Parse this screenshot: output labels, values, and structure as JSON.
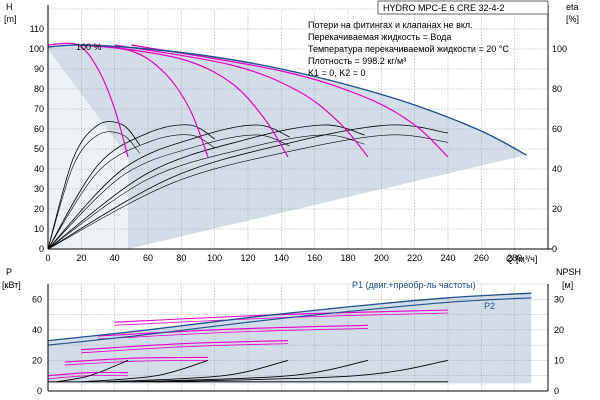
{
  "chart_data": [
    {
      "panel": "head",
      "type": "line",
      "title": "HYDRO MPC-E 6 CRE 32-4-2",
      "ylabel": "H",
      "ylabel_unit": "[m]",
      "y2label": "eta",
      "y2label_unit": "[%]",
      "xlabel": "Q",
      "xlabel_unit": "[м³/ч]",
      "xlim": [
        0,
        300
      ],
      "ylim": [
        0,
        120
      ],
      "y2lim": [
        0,
        120
      ],
      "grid": true,
      "x_ticks": [
        "0",
        "20",
        "40",
        "60",
        "80",
        "100",
        "120",
        "140",
        "160",
        "180",
        "200",
        "220",
        "240",
        "260",
        "280"
      ],
      "y_ticks": [
        "0",
        "10",
        "20",
        "30",
        "40",
        "50",
        "60",
        "70",
        "80",
        "90",
        "100",
        "110"
      ],
      "y2_ticks": [
        "0",
        "20",
        "40",
        "60",
        "80",
        "100"
      ],
      "annotation_100": "100 %",
      "info_lines": [
        "Потери на фитингах и клапанах не вкл.",
        "Перекачиваемая жидкость = Вода",
        "Температура перекачиваемой жидкости = 20 °C",
        "Плотность = 998.2 кг/м³",
        "K1 = 0, K2 = 0"
      ],
      "max_curve": {
        "x": [
          0,
          20,
          60,
          100,
          140,
          180,
          220,
          260,
          287
        ],
        "y": [
          101,
          102,
          100,
          96,
          90,
          82,
          72,
          59,
          47
        ]
      },
      "setpoint_curves": [
        {
          "x": [
            0,
            18,
            30,
            40,
            48
          ],
          "y": [
            102,
            102,
            90,
            70,
            46
          ]
        },
        {
          "x": [
            18,
            50,
            70,
            85,
            96
          ],
          "y": [
            102,
            99,
            88,
            70,
            46
          ]
        },
        {
          "x": [
            30,
            80,
            110,
            130,
            144
          ],
          "y": [
            102,
            95,
            83,
            65,
            46
          ]
        },
        {
          "x": [
            40,
            110,
            150,
            175,
            192
          ],
          "y": [
            102,
            92,
            79,
            63,
            46
          ]
        },
        {
          "x": [
            50,
            140,
            190,
            220,
            240
          ],
          "y": [
            102,
            89,
            76,
            62,
            46
          ]
        }
      ],
      "eta_curves": [
        {
          "x": [
            0,
            15,
            30,
            45,
            55
          ],
          "y": [
            0,
            45,
            62,
            62,
            52
          ]
        },
        {
          "x": [
            0,
            30,
            60,
            85,
            100
          ],
          "y": [
            0,
            42,
            58,
            62,
            55
          ]
        },
        {
          "x": [
            0,
            45,
            90,
            125,
            145
          ],
          "y": [
            0,
            40,
            56,
            62,
            56
          ]
        },
        {
          "x": [
            0,
            60,
            120,
            165,
            190
          ],
          "y": [
            0,
            38,
            55,
            62,
            57
          ]
        },
        {
          "x": [
            0,
            75,
            150,
            205,
            240
          ],
          "y": [
            0,
            36,
            54,
            62,
            58
          ]
        }
      ]
    },
    {
      "panel": "power_npsh",
      "type": "line",
      "ylabel": "P",
      "ylabel_unit": "[кВт]",
      "y2label": "NPSH",
      "y2label_unit": "[м]",
      "xlim": [
        0,
        300
      ],
      "ylim": [
        0,
        70
      ],
      "y2lim": [
        0,
        35
      ],
      "grid": true,
      "y_ticks": [
        "0",
        "20",
        "40",
        "60"
      ],
      "y2_ticks": [
        "0",
        "10",
        "20",
        "30"
      ],
      "series_labels": [
        "P1 (двиг.+преобр-ль частоты)",
        "P2"
      ],
      "p1_curve": {
        "x": [
          0,
          60,
          120,
          180,
          240,
          290
        ],
        "y": [
          33,
          40,
          48,
          55,
          61,
          64
        ]
      },
      "p2_curve": {
        "x": [
          0,
          60,
          120,
          180,
          240,
          290
        ],
        "y": [
          30,
          37,
          45,
          52,
          58,
          61
        ]
      },
      "npsh_curves": [
        {
          "x": [
            5,
            25,
            48
          ],
          "y": [
            3,
            5,
            10
          ]
        },
        {
          "x": [
            20,
            65,
            96
          ],
          "y": [
            3,
            5,
            10
          ]
        },
        {
          "x": [
            35,
            105,
            144
          ],
          "y": [
            3,
            5,
            10
          ]
        },
        {
          "x": [
            50,
            145,
            192
          ],
          "y": [
            3,
            5,
            10
          ]
        },
        {
          "x": [
            65,
            185,
            240
          ],
          "y": [
            3,
            5,
            10
          ]
        }
      ]
    }
  ]
}
